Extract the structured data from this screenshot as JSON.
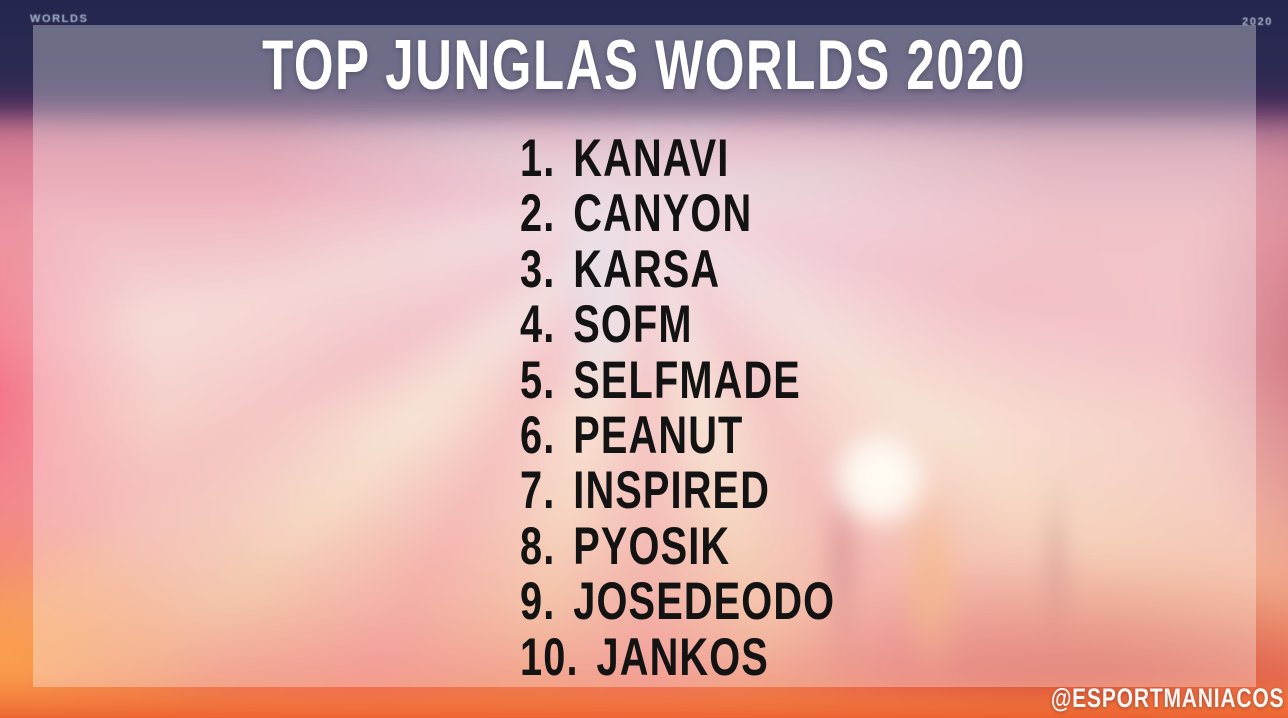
{
  "title": "TOP JUNGLAS WORLDS 2020",
  "ranking": {
    "items": [
      {
        "rank": "1.",
        "name": "KANAVI"
      },
      {
        "rank": "2.",
        "name": "CANYON"
      },
      {
        "rank": "3.",
        "name": "KARSA"
      },
      {
        "rank": "4.",
        "name": "SOFM"
      },
      {
        "rank": "5.",
        "name": "SELFMADE"
      },
      {
        "rank": "6.",
        "name": "PEANUT"
      },
      {
        "rank": "7.",
        "name": "INSPIRED"
      },
      {
        "rank": "8.",
        "name": "PYOSIK"
      },
      {
        "rank": "9.",
        "name": "JOSEDEODO"
      },
      {
        "rank": "10.",
        "name": "JANKOS"
      }
    ]
  },
  "watermark": "@ESPORTMANIACOS",
  "background": {
    "top_left_label": "WORLDS",
    "top_right_label": "2020"
  },
  "colors": {
    "title_text": "#ffffff",
    "list_text": "#131313",
    "overlay_tint": "#ffffff",
    "top_band_navy": "#262a4c",
    "accent_pink": "#ec8294",
    "accent_red": "#d84428",
    "accent_orange": "#ee7a3e"
  }
}
